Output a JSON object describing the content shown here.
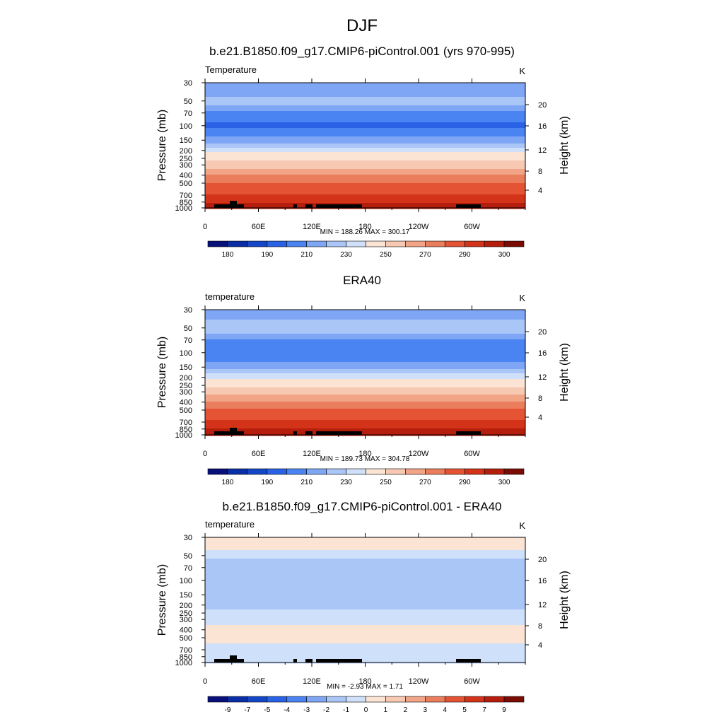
{
  "page": {
    "title": "DJF"
  },
  "colorbar_palette": [
    "#08107a",
    "#0a2ea6",
    "#1447c8",
    "#2a62e6",
    "#4a83f2",
    "#7ea6f5",
    "#a9c6f7",
    "#cfe0fa",
    "#fbe4d4",
    "#f7c9b2",
    "#f2a486",
    "#ea7d5b",
    "#e45434",
    "#d33318",
    "#b51e0c",
    "#7a0c04"
  ],
  "chart_data": [
    {
      "type": "heatmap",
      "title": "b.e21.B1850.f09_g17.CMIP6-piControl.001 (yrs 970-995)",
      "left_label": "Temperature",
      "units": "K",
      "ylabel": "Pressure (mb)",
      "y2label": "Height (km)",
      "stats": "MIN = 188.26  MAX = 300.17",
      "x_ticks": [
        "0",
        "60E",
        "120E",
        "180",
        "120W",
        "60W"
      ],
      "y_ticks": [
        "30",
        "50",
        "70",
        "100",
        "150",
        "200",
        "250",
        "300",
        "400",
        "500",
        "700",
        "850",
        "1000"
      ],
      "y2_ticks": [
        "20",
        "16",
        "12",
        "8",
        "4"
      ],
      "colorbar_labels": [
        "180",
        "190",
        "210",
        "230",
        "250",
        "270",
        "290",
        "300"
      ],
      "ylim": [
        1000,
        30
      ],
      "levels": [
        [
          30,
          205
        ],
        [
          40,
          208
        ],
        [
          50,
          212
        ],
        [
          60,
          209
        ],
        [
          70,
          203
        ],
        [
          100,
          199
        ],
        [
          150,
          207
        ],
        [
          200,
          218
        ],
        [
          250,
          227
        ],
        [
          300,
          235
        ],
        [
          400,
          250
        ],
        [
          500,
          260
        ],
        [
          600,
          266
        ],
        [
          700,
          270
        ],
        [
          850,
          278
        ],
        [
          1000,
          286
        ]
      ]
    },
    {
      "type": "heatmap",
      "title": "ERA40",
      "left_label": "temperature",
      "units": "K",
      "ylabel": "Pressure (mb)",
      "y2label": "Height (km)",
      "stats": "MIN = 189.73  MAX = 304.78",
      "x_ticks": [
        "0",
        "60E",
        "120E",
        "180",
        "120W",
        "60W"
      ],
      "y_ticks": [
        "30",
        "50",
        "70",
        "100",
        "150",
        "200",
        "250",
        "300",
        "400",
        "500",
        "700",
        "850",
        "1000"
      ],
      "y2_ticks": [
        "20",
        "16",
        "12",
        "8",
        "4"
      ],
      "colorbar_labels": [
        "180",
        "190",
        "210",
        "230",
        "250",
        "270",
        "290",
        "300"
      ],
      "ylim": [
        1000,
        30
      ],
      "levels": [
        [
          30,
          206
        ],
        [
          40,
          210
        ],
        [
          50,
          213
        ],
        [
          60,
          210
        ],
        [
          70,
          205
        ],
        [
          100,
          201
        ],
        [
          150,
          208
        ],
        [
          200,
          219
        ],
        [
          250,
          228
        ],
        [
          300,
          236
        ],
        [
          400,
          252
        ],
        [
          500,
          261
        ],
        [
          600,
          267
        ],
        [
          700,
          272
        ],
        [
          850,
          280
        ],
        [
          1000,
          288
        ]
      ]
    },
    {
      "type": "heatmap",
      "title": "b.e21.B1850.f09_g17.CMIP6-piControl.001 - ERA40",
      "left_label": "temperature",
      "units": "K",
      "ylabel": "Pressure (mb)",
      "y2label": "Height (km)",
      "stats": "MIN =  -2.93  MAX =   1.71",
      "x_ticks": [
        "0",
        "60E",
        "120E",
        "180",
        "120W",
        "60W"
      ],
      "y_ticks": [
        "30",
        "50",
        "70",
        "100",
        "150",
        "200",
        "250",
        "300",
        "400",
        "500",
        "700",
        "850",
        "1000"
      ],
      "y2_ticks": [
        "20",
        "16",
        "12",
        "8",
        "4"
      ],
      "colorbar_labels": [
        "-9",
        "-7",
        "-5",
        "-4",
        "-3",
        "-2",
        "-1",
        "0",
        "1",
        "2",
        "3",
        "4",
        "5",
        "7",
        "9"
      ],
      "ylim": [
        1000,
        30
      ],
      "levels": [
        [
          30,
          0.6
        ],
        [
          40,
          0.4
        ],
        [
          50,
          -0.8
        ],
        [
          70,
          -1.8
        ],
        [
          100,
          -1.2
        ],
        [
          150,
          -1.6
        ],
        [
          200,
          -1.2
        ],
        [
          300,
          -0.4
        ],
        [
          400,
          0.4
        ],
        [
          500,
          0.3
        ],
        [
          700,
          -0.5
        ],
        [
          850,
          -0.3
        ],
        [
          1000,
          -0.6
        ]
      ]
    }
  ]
}
